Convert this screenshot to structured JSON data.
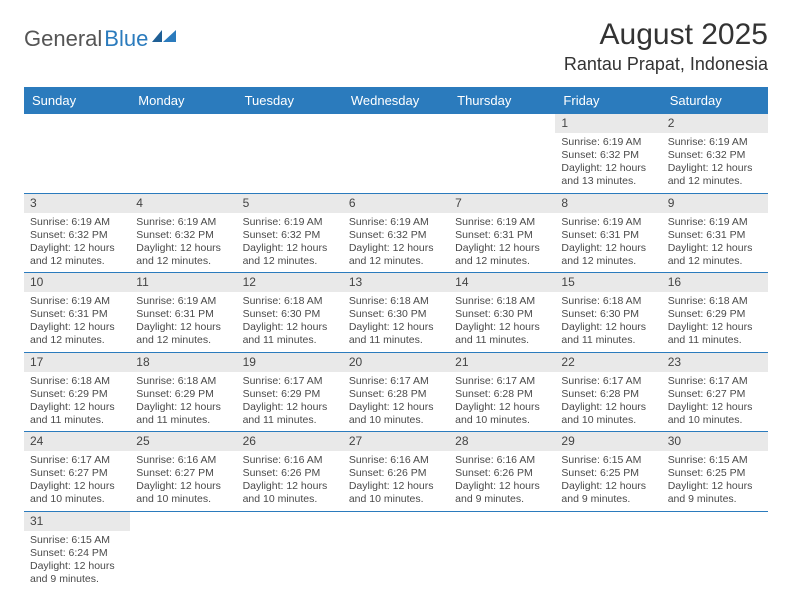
{
  "logo": {
    "part1": "General",
    "part2": "Blue"
  },
  "header": {
    "month_title": "August 2025",
    "location": "Rantau Prapat, Indonesia"
  },
  "colors": {
    "brand_blue": "#2b7bbd",
    "header_text": "#ffffff",
    "daynum_bg": "#e9e9e9",
    "text": "#4a4a4a",
    "row_border": "#2b7bbd"
  },
  "day_names": [
    "Sunday",
    "Monday",
    "Tuesday",
    "Wednesday",
    "Thursday",
    "Friday",
    "Saturday"
  ],
  "weeks": [
    [
      null,
      null,
      null,
      null,
      null,
      {
        "n": "1",
        "sunrise": "Sunrise: 6:19 AM",
        "sunset": "Sunset: 6:32 PM",
        "day1": "Daylight: 12 hours",
        "day2": "and 13 minutes."
      },
      {
        "n": "2",
        "sunrise": "Sunrise: 6:19 AM",
        "sunset": "Sunset: 6:32 PM",
        "day1": "Daylight: 12 hours",
        "day2": "and 12 minutes."
      }
    ],
    [
      {
        "n": "3",
        "sunrise": "Sunrise: 6:19 AM",
        "sunset": "Sunset: 6:32 PM",
        "day1": "Daylight: 12 hours",
        "day2": "and 12 minutes."
      },
      {
        "n": "4",
        "sunrise": "Sunrise: 6:19 AM",
        "sunset": "Sunset: 6:32 PM",
        "day1": "Daylight: 12 hours",
        "day2": "and 12 minutes."
      },
      {
        "n": "5",
        "sunrise": "Sunrise: 6:19 AM",
        "sunset": "Sunset: 6:32 PM",
        "day1": "Daylight: 12 hours",
        "day2": "and 12 minutes."
      },
      {
        "n": "6",
        "sunrise": "Sunrise: 6:19 AM",
        "sunset": "Sunset: 6:32 PM",
        "day1": "Daylight: 12 hours",
        "day2": "and 12 minutes."
      },
      {
        "n": "7",
        "sunrise": "Sunrise: 6:19 AM",
        "sunset": "Sunset: 6:31 PM",
        "day1": "Daylight: 12 hours",
        "day2": "and 12 minutes."
      },
      {
        "n": "8",
        "sunrise": "Sunrise: 6:19 AM",
        "sunset": "Sunset: 6:31 PM",
        "day1": "Daylight: 12 hours",
        "day2": "and 12 minutes."
      },
      {
        "n": "9",
        "sunrise": "Sunrise: 6:19 AM",
        "sunset": "Sunset: 6:31 PM",
        "day1": "Daylight: 12 hours",
        "day2": "and 12 minutes."
      }
    ],
    [
      {
        "n": "10",
        "sunrise": "Sunrise: 6:19 AM",
        "sunset": "Sunset: 6:31 PM",
        "day1": "Daylight: 12 hours",
        "day2": "and 12 minutes."
      },
      {
        "n": "11",
        "sunrise": "Sunrise: 6:19 AM",
        "sunset": "Sunset: 6:31 PM",
        "day1": "Daylight: 12 hours",
        "day2": "and 12 minutes."
      },
      {
        "n": "12",
        "sunrise": "Sunrise: 6:18 AM",
        "sunset": "Sunset: 6:30 PM",
        "day1": "Daylight: 12 hours",
        "day2": "and 11 minutes."
      },
      {
        "n": "13",
        "sunrise": "Sunrise: 6:18 AM",
        "sunset": "Sunset: 6:30 PM",
        "day1": "Daylight: 12 hours",
        "day2": "and 11 minutes."
      },
      {
        "n": "14",
        "sunrise": "Sunrise: 6:18 AM",
        "sunset": "Sunset: 6:30 PM",
        "day1": "Daylight: 12 hours",
        "day2": "and 11 minutes."
      },
      {
        "n": "15",
        "sunrise": "Sunrise: 6:18 AM",
        "sunset": "Sunset: 6:30 PM",
        "day1": "Daylight: 12 hours",
        "day2": "and 11 minutes."
      },
      {
        "n": "16",
        "sunrise": "Sunrise: 6:18 AM",
        "sunset": "Sunset: 6:29 PM",
        "day1": "Daylight: 12 hours",
        "day2": "and 11 minutes."
      }
    ],
    [
      {
        "n": "17",
        "sunrise": "Sunrise: 6:18 AM",
        "sunset": "Sunset: 6:29 PM",
        "day1": "Daylight: 12 hours",
        "day2": "and 11 minutes."
      },
      {
        "n": "18",
        "sunrise": "Sunrise: 6:18 AM",
        "sunset": "Sunset: 6:29 PM",
        "day1": "Daylight: 12 hours",
        "day2": "and 11 minutes."
      },
      {
        "n": "19",
        "sunrise": "Sunrise: 6:17 AM",
        "sunset": "Sunset: 6:29 PM",
        "day1": "Daylight: 12 hours",
        "day2": "and 11 minutes."
      },
      {
        "n": "20",
        "sunrise": "Sunrise: 6:17 AM",
        "sunset": "Sunset: 6:28 PM",
        "day1": "Daylight: 12 hours",
        "day2": "and 10 minutes."
      },
      {
        "n": "21",
        "sunrise": "Sunrise: 6:17 AM",
        "sunset": "Sunset: 6:28 PM",
        "day1": "Daylight: 12 hours",
        "day2": "and 10 minutes."
      },
      {
        "n": "22",
        "sunrise": "Sunrise: 6:17 AM",
        "sunset": "Sunset: 6:28 PM",
        "day1": "Daylight: 12 hours",
        "day2": "and 10 minutes."
      },
      {
        "n": "23",
        "sunrise": "Sunrise: 6:17 AM",
        "sunset": "Sunset: 6:27 PM",
        "day1": "Daylight: 12 hours",
        "day2": "and 10 minutes."
      }
    ],
    [
      {
        "n": "24",
        "sunrise": "Sunrise: 6:17 AM",
        "sunset": "Sunset: 6:27 PM",
        "day1": "Daylight: 12 hours",
        "day2": "and 10 minutes."
      },
      {
        "n": "25",
        "sunrise": "Sunrise: 6:16 AM",
        "sunset": "Sunset: 6:27 PM",
        "day1": "Daylight: 12 hours",
        "day2": "and 10 minutes."
      },
      {
        "n": "26",
        "sunrise": "Sunrise: 6:16 AM",
        "sunset": "Sunset: 6:26 PM",
        "day1": "Daylight: 12 hours",
        "day2": "and 10 minutes."
      },
      {
        "n": "27",
        "sunrise": "Sunrise: 6:16 AM",
        "sunset": "Sunset: 6:26 PM",
        "day1": "Daylight: 12 hours",
        "day2": "and 10 minutes."
      },
      {
        "n": "28",
        "sunrise": "Sunrise: 6:16 AM",
        "sunset": "Sunset: 6:26 PM",
        "day1": "Daylight: 12 hours",
        "day2": "and 9 minutes."
      },
      {
        "n": "29",
        "sunrise": "Sunrise: 6:15 AM",
        "sunset": "Sunset: 6:25 PM",
        "day1": "Daylight: 12 hours",
        "day2": "and 9 minutes."
      },
      {
        "n": "30",
        "sunrise": "Sunrise: 6:15 AM",
        "sunset": "Sunset: 6:25 PM",
        "day1": "Daylight: 12 hours",
        "day2": "and 9 minutes."
      }
    ],
    [
      {
        "n": "31",
        "sunrise": "Sunrise: 6:15 AM",
        "sunset": "Sunset: 6:24 PM",
        "day1": "Daylight: 12 hours",
        "day2": "and 9 minutes."
      },
      null,
      null,
      null,
      null,
      null,
      null
    ]
  ]
}
